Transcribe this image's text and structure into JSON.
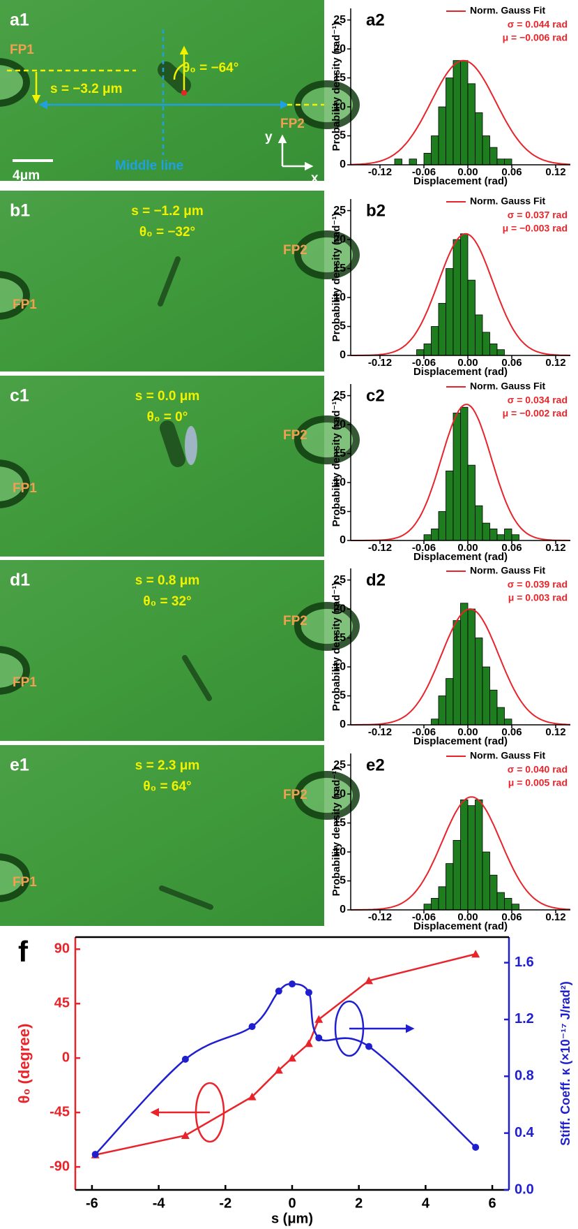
{
  "images": [
    {
      "label": "a1",
      "fp1": "FP1",
      "fp2": "FP2",
      "s": "s = −3.2 μm",
      "theta": "θ₀ = −64°",
      "scale_bar": "4μm",
      "middle_line": "Middle line",
      "y_axis": "y",
      "x_axis": "x"
    },
    {
      "label": "b1",
      "s": "s = −1.2 μm",
      "theta": "θ₀ = −32°",
      "fp1": "FP1",
      "fp2": "FP2"
    },
    {
      "label": "c1",
      "s": "s = 0.0 μm",
      "theta": "θ₀ = 0°",
      "fp1": "FP1",
      "fp2": "FP2"
    },
    {
      "label": "d1",
      "s": "s = 0.8 μm",
      "theta": "θ₀ = 32°",
      "fp1": "FP1",
      "fp2": "FP2"
    },
    {
      "label": "e1",
      "s": "s = 2.3 μm",
      "theta": "θ₀ = 64°",
      "fp1": "FP1",
      "fp2": "FP2"
    }
  ],
  "chart_data": [
    {
      "type": "histogram",
      "title": "a2",
      "xlabel": "Displacement (rad)",
      "ylabel": "Probability density (rad⁻¹)",
      "bins": [
        -0.1,
        -0.09,
        -0.08,
        -0.07,
        -0.06,
        -0.05,
        -0.04,
        -0.03,
        -0.02,
        -0.01,
        0.0,
        0.01,
        0.02,
        0.03,
        0.04,
        0.05,
        0.06
      ],
      "counts": [
        1,
        0,
        1,
        0,
        2,
        5,
        10,
        15,
        18,
        18,
        14,
        9,
        5,
        3,
        1,
        1
      ],
      "color": "#1e7d1e",
      "fit": {
        "name": "Norm. Gauss Fit",
        "color": "#e8242a",
        "mu": -0.006,
        "sigma": 0.044,
        "amplitude": 18
      },
      "annotations": [
        "σ = 0.044 rad",
        "μ = −0.006 rad"
      ],
      "xlim": [
        -0.16,
        0.14
      ],
      "xticks": [
        -0.12,
        -0.06,
        {
          "value": 0,
          "label": "0.00"
        },
        0.06,
        0.12
      ],
      "ylim": [
        0,
        27
      ],
      "yticks": [
        0,
        5,
        10,
        15,
        20,
        25
      ]
    },
    {
      "type": "histogram",
      "title": "b2",
      "xlabel": "Displacement (rad)",
      "ylabel": "Probability density (rad⁻¹)",
      "bins": [
        -0.07,
        -0.06,
        -0.05,
        -0.04,
        -0.03,
        -0.02,
        -0.01,
        0.0,
        0.01,
        0.02,
        0.03,
        0.04,
        0.05
      ],
      "counts": [
        1,
        2,
        5,
        9,
        15,
        20,
        21,
        13,
        7,
        4,
        2,
        1
      ],
      "color": "#1e7d1e",
      "fit": {
        "name": "Norm. Gauss Fit",
        "color": "#e8242a",
        "mu": -0.003,
        "sigma": 0.037,
        "amplitude": 21
      },
      "annotations": [
        "σ = 0.037 rad",
        "μ = −0.003 rad"
      ],
      "xlim": [
        -0.16,
        0.14
      ],
      "xticks": [
        -0.12,
        -0.06,
        {
          "value": 0,
          "label": "0.00"
        },
        0.06,
        0.12
      ],
      "ylim": [
        0,
        27
      ],
      "yticks": [
        0,
        5,
        10,
        15,
        20,
        25
      ]
    },
    {
      "type": "histogram",
      "title": "c2",
      "xlabel": "Displacement (rad)",
      "ylabel": "Probability density (rad⁻¹)",
      "bins": [
        -0.06,
        -0.05,
        -0.04,
        -0.03,
        -0.02,
        -0.01,
        0.0,
        0.01,
        0.02,
        0.03,
        0.04,
        0.05,
        0.06,
        0.07
      ],
      "counts": [
        1,
        2,
        5,
        12,
        22,
        23,
        13,
        6,
        3,
        2,
        1,
        2,
        1
      ],
      "color": "#1e7d1e",
      "fit": {
        "name": "Norm. Gauss Fit",
        "color": "#e8242a",
        "mu": -0.002,
        "sigma": 0.034,
        "amplitude": 23.5
      },
      "annotations": [
        "σ = 0.034 rad",
        "μ = −0.002 rad"
      ],
      "xlim": [
        -0.16,
        0.14
      ],
      "xticks": [
        -0.12,
        -0.06,
        {
          "value": 0,
          "label": "0.00"
        },
        0.06,
        0.12
      ],
      "ylim": [
        0,
        27
      ],
      "yticks": [
        0,
        5,
        10,
        15,
        20,
        25
      ]
    },
    {
      "type": "histogram",
      "title": "d2",
      "xlabel": "Displacement (rad)",
      "ylabel": "Probability density (rad⁻¹)",
      "bins": [
        -0.05,
        -0.04,
        -0.03,
        -0.02,
        -0.01,
        0.0,
        0.01,
        0.02,
        0.03,
        0.04,
        0.05,
        0.06
      ],
      "counts": [
        1,
        5,
        8,
        18,
        21,
        20,
        15,
        10,
        6,
        3,
        1
      ],
      "color": "#1e7d1e",
      "fit": {
        "name": "Norm. Gauss Fit",
        "color": "#e8242a",
        "mu": 0.003,
        "sigma": 0.039,
        "amplitude": 20
      },
      "annotations": [
        "σ = 0.039 rad",
        "μ = 0.003 rad"
      ],
      "xlim": [
        -0.16,
        0.14
      ],
      "xticks": [
        -0.12,
        -0.06,
        {
          "value": 0,
          "label": "0.00"
        },
        0.06,
        0.12
      ],
      "ylim": [
        0,
        27
      ],
      "yticks": [
        0,
        5,
        10,
        15,
        20,
        25
      ]
    },
    {
      "type": "histogram",
      "title": "e2",
      "xlabel": "Displacement (rad)",
      "ylabel": "Probability density (rad⁻¹)",
      "bins": [
        -0.06,
        -0.05,
        -0.04,
        -0.03,
        -0.02,
        -0.01,
        0.0,
        0.01,
        0.02,
        0.03,
        0.04,
        0.05,
        0.06,
        0.07
      ],
      "counts": [
        1,
        2,
        4,
        8,
        12,
        19,
        18,
        19,
        10,
        6,
        3,
        2,
        1
      ],
      "color": "#1e7d1e",
      "fit": {
        "name": "Norm. Gauss Fit",
        "color": "#e8242a",
        "mu": 0.005,
        "sigma": 0.04,
        "amplitude": 19.5
      },
      "annotations": [
        "σ = 0.040 rad",
        "μ = 0.005 rad"
      ],
      "xlim": [
        -0.16,
        0.14
      ],
      "xticks": [
        -0.12,
        -0.06,
        {
          "value": 0,
          "label": "0.00"
        },
        0.06,
        0.12
      ],
      "ylim": [
        0,
        27
      ],
      "yticks": [
        0,
        5,
        10,
        15,
        20,
        25
      ]
    },
    {
      "type": "line",
      "title": "f",
      "xlabel": "s (μm)",
      "ylabel": "θ₀ (degree)",
      "y2label": "Stiff. Coeff. κ (×10⁻¹⁷ J/rad²)",
      "x": [
        -5.9,
        -3.2,
        -1.2,
        -0.4,
        0.0,
        0.5,
        0.8,
        2.3,
        5.5
      ],
      "xlim": [
        -6.5,
        6.5
      ],
      "xticks": [
        -6,
        -4,
        -2,
        0,
        2,
        4,
        6
      ],
      "ylim": [
        -109,
        100
      ],
      "yticks": [
        -90,
        -45,
        0,
        45,
        90
      ],
      "y2lim": [
        0,
        1.78
      ],
      "y2ticks": [
        {
          "value": 0,
          "label": "0.0"
        },
        0.4,
        0.8,
        1.2,
        1.6
      ],
      "series": [
        {
          "color": "#e8242a",
          "marker": "triangle",
          "values": [
            -80,
            -64,
            -32,
            -10,
            0,
            12,
            32,
            64,
            86
          ]
        },
        {
          "color": "#1f1fd0",
          "marker": "circle",
          "smooth": true,
          "axis": "y2",
          "values": [
            0.25,
            0.92,
            1.15,
            1.4,
            1.45,
            1.39,
            1.07,
            1.01,
            0.3
          ]
        }
      ]
    }
  ]
}
